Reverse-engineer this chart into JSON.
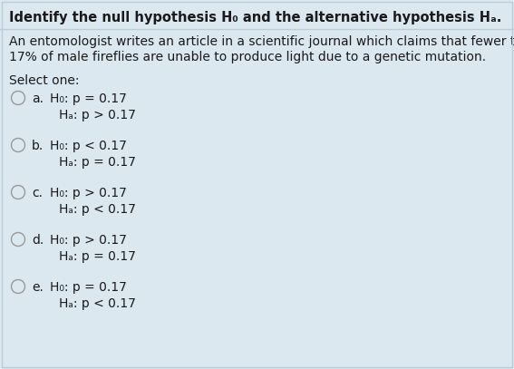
{
  "background_color": "#dce8f0",
  "title_line": "Identify the null hypothesis H₀ and the alternative hypothesis Hₐ.",
  "body_line1": "An entomologist writes an article in a scientific journal which claims that fewer than",
  "body_line2": "17% of male fireflies are unable to produce light due to a genetic mutation.",
  "select_label": "Select one:",
  "options": [
    {
      "letter": "a",
      "line1": "H₀: p = 0.17",
      "line2": "Hₐ: p > 0.17"
    },
    {
      "letter": "b",
      "line1": "H₀: p < 0.17",
      "line2": "Hₐ: p = 0.17"
    },
    {
      "letter": "c",
      "line1": "H₀: p > 0.17",
      "line2": "Hₐ: p < 0.17"
    },
    {
      "letter": "d",
      "line1": "H₀: p > 0.17",
      "line2": "Hₐ: p = 0.17"
    },
    {
      "letter": "e",
      "line1": "H₀: p = 0.17",
      "line2": "Hₐ: p < 0.17"
    }
  ],
  "text_color": "#1a1a1a",
  "title_fontsize": 10.5,
  "body_fontsize": 10.0,
  "option_fontsize": 10.0,
  "circle_color": "#dce8f0",
  "circle_edge_color": "#999999"
}
